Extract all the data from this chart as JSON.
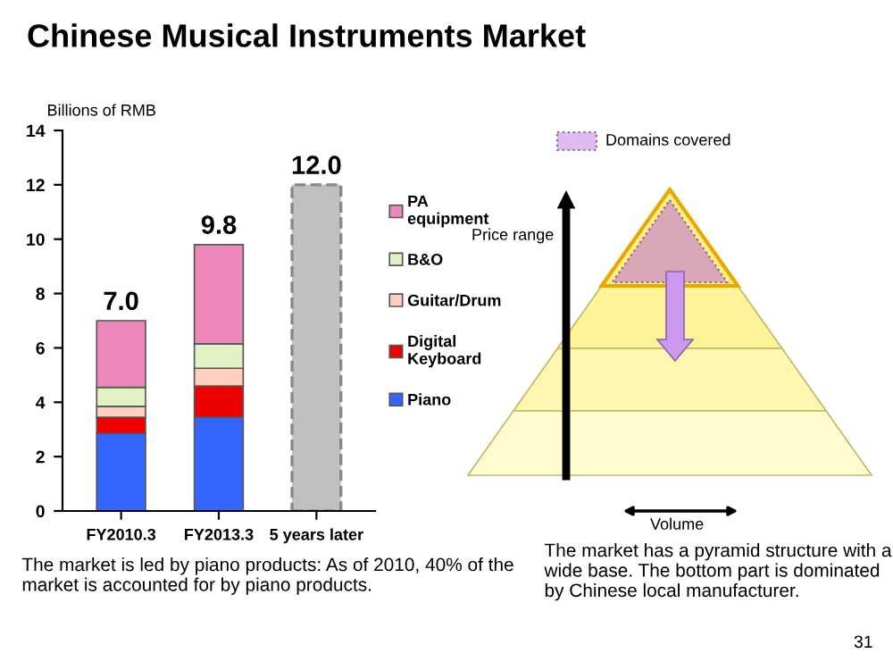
{
  "chart_data": {
    "type": "bar",
    "title": "Chinese Musical Instruments Market",
    "ylabel": "Billions of RMB",
    "categories": [
      "FY2010.3",
      "FY2013.3",
      "5 years later"
    ],
    "stacked": true,
    "series": [
      {
        "name": "Piano",
        "color": "#3366ff",
        "values": [
          2.85,
          3.45,
          null
        ]
      },
      {
        "name": "Digital Keyboard",
        "color": "#ee0000",
        "values": [
          0.6,
          1.15,
          null
        ]
      },
      {
        "name": "Guitar/Drum",
        "color": "#ffd0c0",
        "values": [
          0.4,
          0.65,
          null
        ]
      },
      {
        "name": "B&O",
        "color": "#e2f2c4",
        "values": [
          0.7,
          0.9,
          null
        ]
      },
      {
        "name": "PA equipment",
        "color": "#ee88bb",
        "values": [
          2.45,
          3.65,
          null
        ]
      },
      {
        "color": "#c0c0c0",
        "line_style": "dashed",
        "values": [
          null,
          null,
          12.0
        ]
      }
    ],
    "totals": [
      "7.0",
      "9.8",
      "12.0"
    ],
    "ylim": [
      0,
      14
    ],
    "yticks": [
      0,
      2,
      4,
      6,
      8,
      10,
      12,
      14
    ],
    "grid": false,
    "legend": "right",
    "annotations": [
      "The market is led by piano products: As of 2010, 40% of the market is accounted for by piano products.",
      "Price range",
      "Volume",
      "The market has a pyramid structure with a wide base. The bottom part is dominated by Chinese local manufacturer.",
      "Domains covered",
      "31"
    ]
  }
}
